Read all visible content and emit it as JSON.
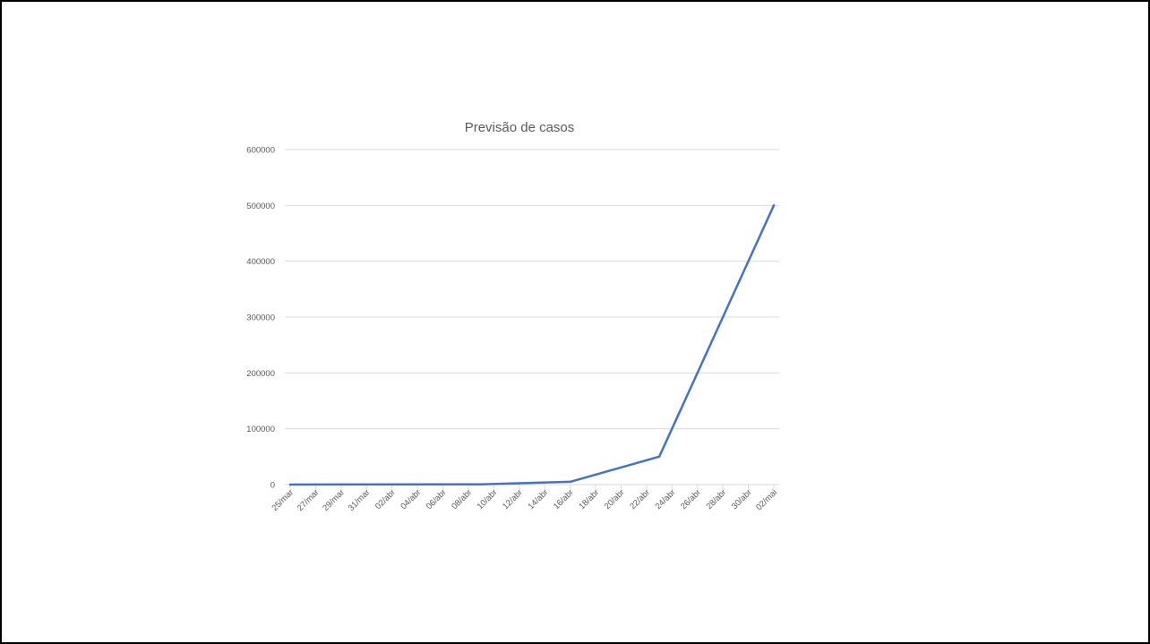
{
  "chart_data": {
    "type": "line",
    "title": "Previsão de casos",
    "xlabel": "",
    "ylabel": "",
    "x_tick_labels": [
      "25/mar",
      "27/mar",
      "29/mar",
      "31/mar",
      "02/abr",
      "04/abr",
      "06/abr",
      "08/abr",
      "10/abr",
      "12/abr",
      "14/abr",
      "16/abr",
      "18/abr",
      "20/abr",
      "22/abr",
      "24/abr",
      "26/abr",
      "28/abr",
      "30/abr",
      "02/mai"
    ],
    "y_ticks": [
      0,
      100000,
      200000,
      300000,
      400000,
      500000,
      600000
    ],
    "ylim": [
      0,
      600000
    ],
    "xlim": [
      "25/mar",
      "02/mai"
    ],
    "grid": true,
    "legend": "none",
    "series": [
      {
        "color": "#4472c4",
        "points": [
          {
            "x": "25/mar",
            "y": 0
          },
          {
            "x": "09/abr",
            "y": 500
          },
          {
            "x": "16/abr",
            "y": 5000
          },
          {
            "x": "23/abr",
            "y": 50000
          },
          {
            "x": "02/mai",
            "y": 500000
          }
        ]
      }
    ]
  }
}
